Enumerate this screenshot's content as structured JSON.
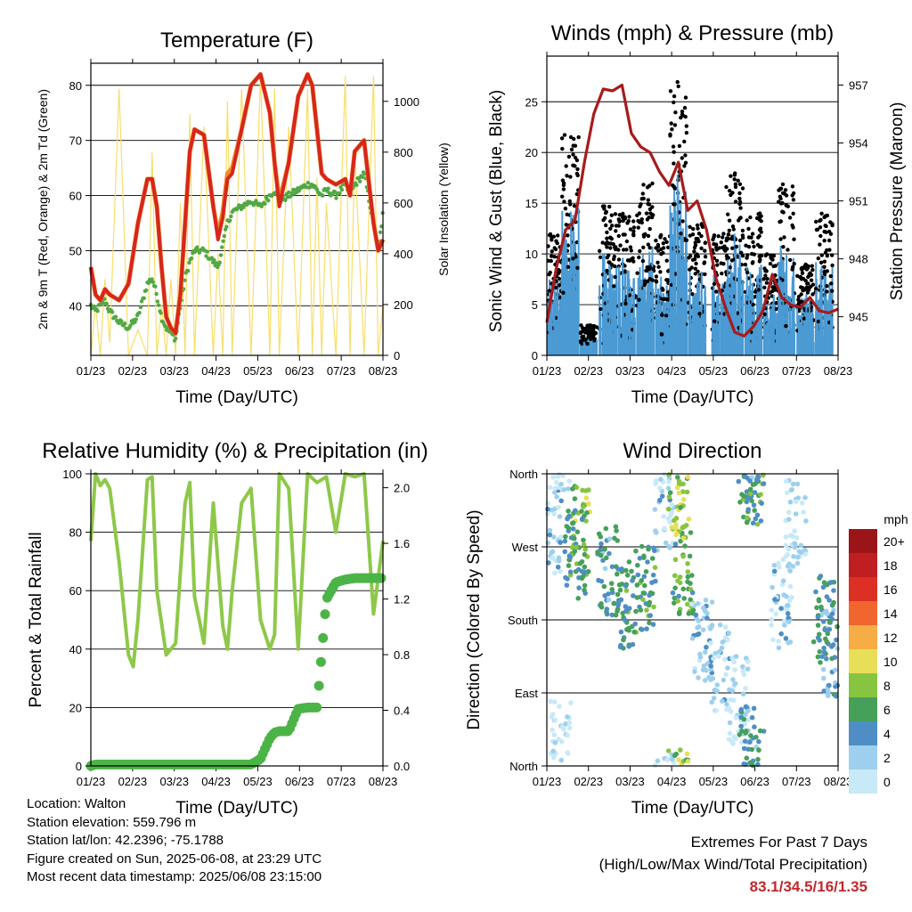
{
  "colors": {
    "temp_red": "#d7261e",
    "temp_orange": "#f28c28",
    "dewpoint_green": "#52a844",
    "solar_yellow": "#f8de6a",
    "gust_black": "#000000",
    "wind_blue": "#4b9ad3",
    "pressure_maroon": "#a61b1b",
    "rh_lightgreen": "#8ec84a",
    "precip_green": "#4cb447",
    "extremes_red": "#c0282d"
  },
  "x_ticks": [
    "01/23",
    "02/23",
    "03/23",
    "04/23",
    "05/23",
    "06/23",
    "07/23",
    "08/23"
  ],
  "chart_data": [
    {
      "id": "temperature",
      "type": "line",
      "title": "Temperature (F)",
      "xlabel": "Time (Day/UTC)",
      "ylabel": "2m & 9m T (Red, Orange) & 2m Td (Green)",
      "ylabel_right": "Solar Insolation (Yellow)",
      "ylim": [
        31,
        84
      ],
      "yticks": [
        40,
        50,
        60,
        70,
        80
      ],
      "ylim_right": [
        0,
        1150
      ],
      "yticks_right": [
        0,
        200,
        400,
        600,
        800,
        1000
      ],
      "x": [
        0,
        0.5,
        1,
        1.5,
        2,
        3,
        4,
        5,
        6,
        6.5,
        7,
        7.5,
        8,
        8.5,
        9,
        9.5,
        10,
        10.5,
        11,
        12,
        13,
        13.5,
        14,
        14.5,
        15,
        16,
        17,
        18,
        19,
        19.5,
        20,
        21,
        22,
        23,
        23.5,
        24,
        24.5,
        25,
        26,
        27,
        27.5,
        28,
        29,
        30,
        30.5,
        31
      ],
      "series": [
        {
          "name": "2m T",
          "values": [
            47,
            42,
            41,
            43,
            42,
            41,
            44,
            55,
            63,
            63,
            58,
            47,
            38,
            36,
            35,
            42,
            55,
            68,
            72,
            71,
            58,
            52,
            56,
            63,
            64,
            72,
            80,
            82,
            75,
            66,
            58,
            66,
            78,
            82,
            80,
            72,
            64,
            63,
            62,
            63,
            60,
            68,
            70,
            55,
            50,
            52
          ]
        },
        {
          "name": "9m T",
          "values": [
            47,
            42,
            41,
            43,
            42,
            41,
            44,
            55,
            63,
            63,
            58,
            47,
            38,
            36,
            35,
            42,
            55,
            68,
            72,
            71,
            58,
            53,
            57,
            64,
            65,
            72,
            80,
            82,
            75,
            66,
            59,
            66,
            78,
            82,
            80,
            72,
            64,
            63,
            62,
            63,
            60,
            68,
            70,
            55,
            50,
            52
          ]
        },
        {
          "name": "2m Td",
          "values": [
            40,
            39,
            40,
            41,
            39,
            37,
            36,
            38,
            44,
            45,
            42,
            38,
            36,
            35,
            34,
            40,
            45,
            48,
            50,
            50,
            48,
            47,
            51,
            55,
            57,
            58,
            59,
            58,
            60,
            61,
            59,
            60,
            61,
            62,
            62,
            61,
            60,
            61,
            60,
            62,
            60,
            62,
            64,
            55,
            50,
            57
          ]
        },
        {
          "name": "Solar Insolation",
          "axis": "right",
          "values": [
            0,
            200,
            0,
            300,
            50,
            1050,
            0,
            100,
            0,
            800,
            0,
            200,
            0,
            300,
            0,
            600,
            0,
            950,
            0,
            900,
            0,
            400,
            0,
            1000,
            0,
            1050,
            0,
            1100,
            0,
            1050,
            0,
            900,
            0,
            1050,
            0,
            700,
            0,
            600,
            0,
            1100,
            0,
            800,
            0,
            1100,
            0,
            200
          ]
        }
      ]
    },
    {
      "id": "winds",
      "type": "scatter",
      "title": "Winds (mph) & Pressure (mb)",
      "xlabel": "Time (Day/UTC)",
      "ylabel": "Sonic Wind & Gust (Blue, Black)",
      "ylabel_right": "Station Pressure (Maroon)",
      "ylim": [
        0,
        29.5
      ],
      "yticks": [
        0,
        5,
        10,
        15,
        20,
        25
      ],
      "ylim_right": [
        943.0,
        958.5
      ],
      "yticks_right": [
        945,
        948,
        951,
        954,
        957
      ],
      "gust_bursts": [
        {
          "x": 1,
          "peak": 12
        },
        {
          "x": 2.5,
          "peak": 22
        },
        {
          "x": 4.5,
          "peak": 3
        },
        {
          "x": 6.5,
          "peak": 15
        },
        {
          "x": 8.5,
          "peak": 14
        },
        {
          "x": 10.5,
          "peak": 17
        },
        {
          "x": 12.5,
          "peak": 12
        },
        {
          "x": 14,
          "peak": 27
        },
        {
          "x": 16,
          "peak": 13
        },
        {
          "x": 18.5,
          "peak": 12
        },
        {
          "x": 20,
          "peak": 18
        },
        {
          "x": 22,
          "peak": 14
        },
        {
          "x": 24,
          "peak": 10
        },
        {
          "x": 25.5,
          "peak": 17
        },
        {
          "x": 27.5,
          "peak": 9
        },
        {
          "x": 29.5,
          "peak": 14
        }
      ],
      "pressure": {
        "x": [
          0,
          1,
          2,
          3,
          4,
          5,
          6,
          7,
          8,
          9,
          10,
          11,
          12,
          13,
          14,
          15,
          16,
          17,
          18,
          19,
          20,
          21,
          22,
          23,
          24,
          25,
          26,
          27,
          28,
          29,
          30,
          31
        ],
        "values": [
          944.7,
          947.5,
          949.5,
          950.0,
          953.0,
          955.5,
          956.8,
          956.7,
          957.0,
          954.5,
          953.8,
          953.5,
          952.5,
          951.8,
          953.0,
          950.5,
          951.0,
          949.5,
          947.0,
          945.5,
          944.2,
          944.0,
          944.5,
          945.3,
          947.2,
          946.0,
          945.6,
          945.5,
          946.0,
          945.3,
          945.2,
          945.4
        ]
      }
    },
    {
      "id": "humidity",
      "type": "line",
      "title": "Relative Humidity (%) & Precipitation (in)",
      "xlabel": "Time (Day/UTC)",
      "ylabel": "Percent & Total Rainfall",
      "ylim": [
        0,
        100
      ],
      "yticks": [
        0,
        20,
        40,
        60,
        80,
        100
      ],
      "ylim_right": [
        0,
        2.1
      ],
      "yticks_right": [
        "0.0",
        "0.4",
        "0.8",
        "1.2",
        "1.6",
        "2.0"
      ],
      "x": [
        0,
        0.5,
        1,
        1.5,
        2,
        3,
        4,
        4.5,
        5,
        6,
        6.5,
        7,
        8,
        9,
        10,
        10.5,
        11,
        12,
        13,
        14,
        14.5,
        15,
        16,
        17,
        18,
        19,
        19.5,
        20,
        21,
        22,
        23,
        24,
        25,
        26,
        27,
        28,
        29,
        30,
        31
      ],
      "series": [
        {
          "name": "RH",
          "values": [
            77,
            100,
            96,
            98,
            95,
            70,
            38,
            34,
            50,
            98,
            99,
            60,
            38,
            42,
            90,
            97,
            58,
            42,
            90,
            48,
            40,
            60,
            90,
            95,
            50,
            40,
            45,
            100,
            95,
            40,
            100,
            97,
            99,
            80,
            100,
            99,
            100,
            52,
            77
          ]
        },
        {
          "name": "Precipitation",
          "axis": "right",
          "values": [
            0,
            0.01,
            0.01,
            0.01,
            0.01,
            0.01,
            0.01,
            0.01,
            0.01,
            0.01,
            0.01,
            0.01,
            0.01,
            0.01,
            0.01,
            0.01,
            0.01,
            0.01,
            0.01,
            0.01,
            0.01,
            0.01,
            0.01,
            0.01,
            0.05,
            0.2,
            0.24,
            0.25,
            0.25,
            0.41,
            0.42,
            0.42,
            1.2,
            1.32,
            1.34,
            1.35,
            1.35,
            1.35,
            1.35
          ]
        }
      ]
    },
    {
      "id": "direction",
      "type": "scatter",
      "title": "Wind Direction",
      "xlabel": "Time (Day/UTC)",
      "ylabel": "Direction (Colored By Speed)",
      "yticks": [
        "North",
        "East",
        "South",
        "West",
        "North"
      ],
      "legend_title": "mph",
      "legend": [
        {
          "label": "0",
          "color": "#c8e9f7"
        },
        {
          "label": "2",
          "color": "#9dd0ee"
        },
        {
          "label": "4",
          "color": "#4f8ec5"
        },
        {
          "label": "6",
          "color": "#46a05a"
        },
        {
          "label": "8",
          "color": "#87c440"
        },
        {
          "label": "10",
          "color": "#e6df57"
        },
        {
          "label": "12",
          "color": "#f6ad45"
        },
        {
          "label": "14",
          "color": "#f0662e"
        },
        {
          "label": "16",
          "color": "#dc3025"
        },
        {
          "label": "18",
          "color": "#c01f22"
        },
        {
          "label": "20+",
          "color": "#9b1418"
        }
      ]
    }
  ],
  "info": {
    "location": "Location: Walton",
    "elevation": "Station elevation: 559.796 m",
    "latlon": "Station lat/lon: 42.2396; -75.1788",
    "created": "Figure created on Sun, 2025-06-08, at 23:29 UTC",
    "recent": "Most recent data timestamp: 2025/06/08 23:15:00"
  },
  "extremes": {
    "title": "Extremes For Past 7 Days",
    "subtitle": "(High/Low/Max Wind/Total Precipitation)",
    "values": "83.1/34.5/16/1.35"
  }
}
